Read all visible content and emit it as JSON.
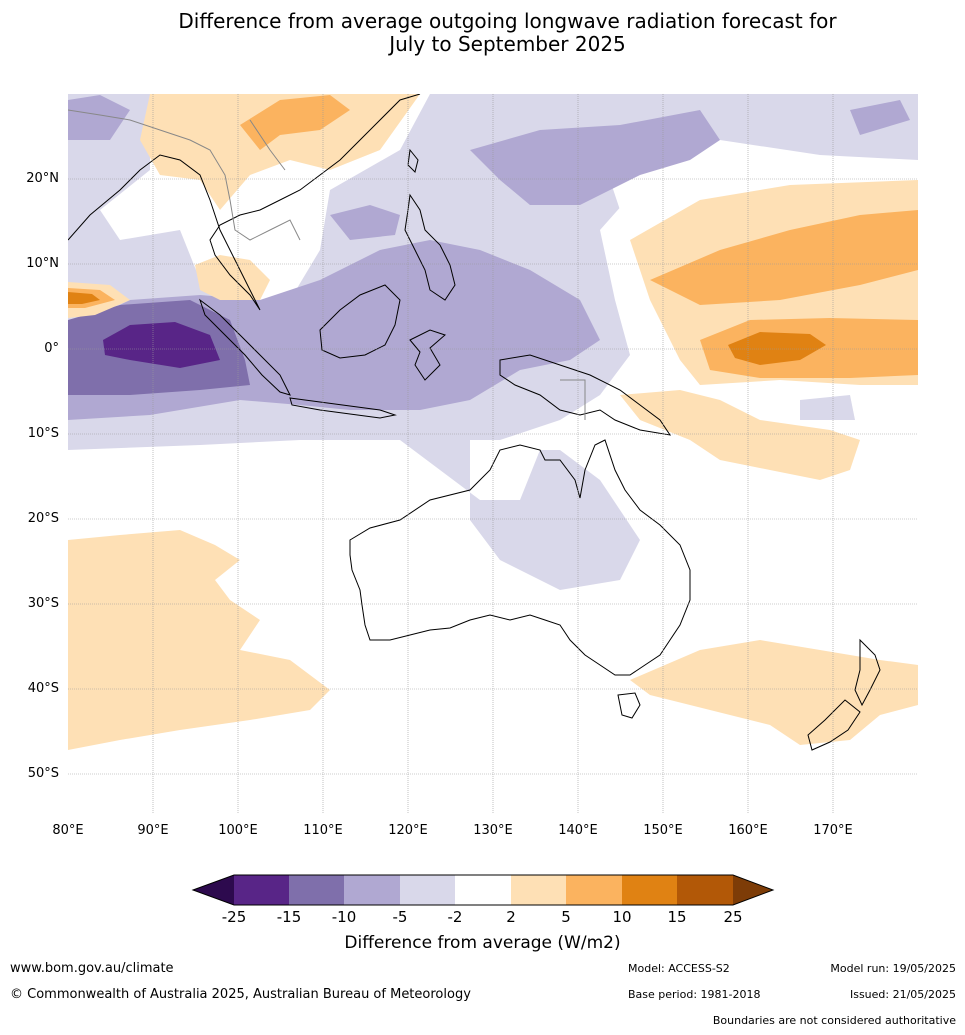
{
  "title_line1": "Difference from average outgoing longwave radiation forecast for",
  "title_line2": "July to September 2025",
  "lat_ticks": [
    "20°N",
    "10°N",
    "0°",
    "10°S",
    "20°S",
    "30°S",
    "40°S",
    "50°S"
  ],
  "lon_ticks": [
    "80°E",
    "90°E",
    "100°E",
    "110°E",
    "120°E",
    "130°E",
    "140°E",
    "150°E",
    "160°E",
    "170°E"
  ],
  "colorbar": {
    "labels": [
      "-25",
      "-15",
      "-10",
      "-5",
      "-2",
      "2",
      "5",
      "10",
      "15",
      "25"
    ],
    "colors": [
      "#2d0a4e",
      "#582587",
      "#7f6fab",
      "#b0a8d2",
      "#d9d8ea",
      "#ffffff",
      "#fee0b5",
      "#fbb35f",
      "#e08213",
      "#b25807",
      "#7d3c07"
    ],
    "title": "Difference from average (W/m2)"
  },
  "footer": {
    "url": "www.bom.gov.au/climate",
    "copyright": "© Commonwealth of Australia 2025, Australian Bureau of Meteorology",
    "model": "Model: ACCESS-S2",
    "base_period": "Base period: 1981-2018",
    "model_run": "Model run: 19/05/2025",
    "issued": "Issued: 21/05/2025",
    "disclaimer": "Boundaries are not considered authoritative"
  }
}
